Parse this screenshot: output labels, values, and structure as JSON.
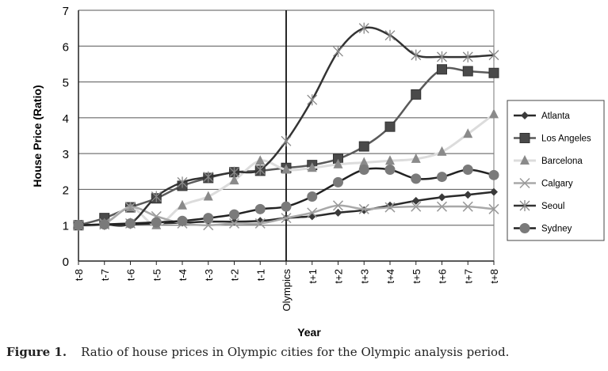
{
  "chart_data": {
    "type": "line",
    "title": "",
    "xlabel": "Year",
    "ylabel": "House Price (Ratio)",
    "ylim": [
      0,
      7
    ],
    "yticks": [
      "0",
      "1",
      "2",
      "3",
      "4",
      "5",
      "6",
      "7"
    ],
    "grid": true,
    "legend": "right",
    "categories": [
      "t-8",
      "t-7",
      "t-6",
      "t-5",
      "t-4",
      "t-3",
      "t-2",
      "t-1",
      "Olympics",
      "t+1",
      "t+2",
      "t+3",
      "t+4",
      "t+5",
      "t+6",
      "t+7",
      "t+8"
    ],
    "marker_line_at": "Olympics",
    "series": [
      {
        "name": "Atlanta",
        "marker": "diamond",
        "line_color": "#2a2a2a",
        "marker_color": "#3a3a3a",
        "values": [
          1,
          1.02,
          1.03,
          1.05,
          1.07,
          1.1,
          1.1,
          1.12,
          1.2,
          1.25,
          1.35,
          1.42,
          1.55,
          1.68,
          1.78,
          1.85,
          1.93
        ]
      },
      {
        "name": "Los Angeles",
        "marker": "square",
        "line_color": "#5a5a5a",
        "marker_color": "#4a4a4a",
        "values": [
          1,
          1.2,
          1.5,
          1.75,
          2.1,
          2.32,
          2.48,
          2.52,
          2.6,
          2.68,
          2.85,
          3.2,
          3.75,
          4.65,
          5.35,
          5.3,
          5.25
        ]
      },
      {
        "name": "Barcelona",
        "marker": "triangle",
        "line_color": "#dcdcdc",
        "marker_color": "#8a8a8a",
        "values": [
          1,
          1.05,
          1.5,
          1.0,
          1.55,
          1.8,
          2.25,
          2.8,
          2.55,
          2.6,
          2.7,
          2.75,
          2.8,
          2.85,
          3.05,
          3.55,
          4.1
        ]
      },
      {
        "name": "Calgary",
        "marker": "x",
        "line_color": "#a8a8a8",
        "marker_color": "#999999",
        "values": [
          1,
          1.05,
          1.5,
          1.25,
          1.05,
          1.0,
          1.05,
          1.05,
          1.2,
          1.35,
          1.55,
          1.45,
          1.5,
          1.52,
          1.52,
          1.52,
          1.45
        ]
      },
      {
        "name": "Seoul",
        "marker": "star",
        "line_color": "#333333",
        "marker_color": "#888888",
        "values": [
          1,
          1.02,
          1.05,
          1.8,
          2.2,
          2.35,
          2.48,
          2.55,
          3.35,
          4.5,
          5.85,
          6.5,
          6.3,
          5.75,
          5.7,
          5.7,
          5.75
        ]
      },
      {
        "name": "Sydney",
        "marker": "circle",
        "line_color": "#222222",
        "marker_color": "#7a7a7a",
        "values": [
          1,
          1.02,
          1.05,
          1.08,
          1.12,
          1.2,
          1.3,
          1.45,
          1.52,
          1.8,
          2.2,
          2.55,
          2.55,
          2.3,
          2.35,
          2.55,
          2.4
        ]
      }
    ]
  },
  "caption": {
    "label": "Figure 1.",
    "text": "Ratio of house prices in Olympic cities for the Olympic analysis period."
  }
}
